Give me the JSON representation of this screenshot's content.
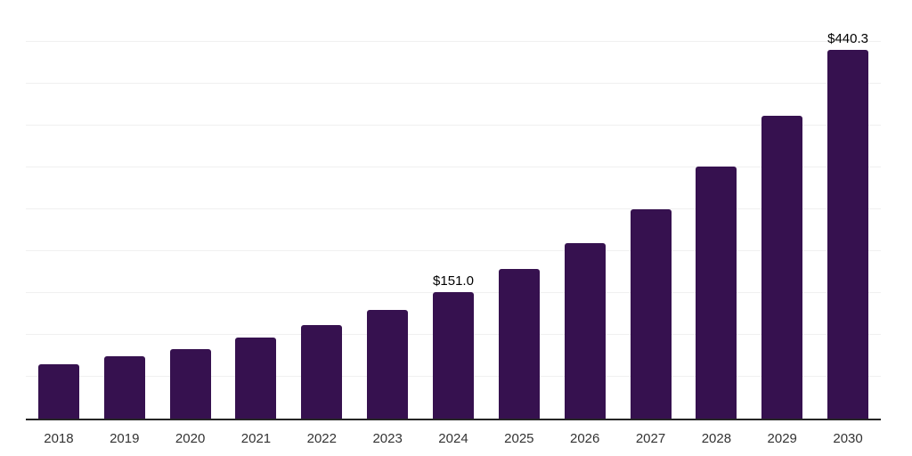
{
  "chart_data": {
    "type": "bar",
    "title": "",
    "xlabel": "",
    "ylabel": "",
    "categories": [
      "2018",
      "2019",
      "2020",
      "2021",
      "2022",
      "2023",
      "2024",
      "2025",
      "2026",
      "2027",
      "2028",
      "2029",
      "2030"
    ],
    "values": [
      65.0,
      74.5,
      82.5,
      96.5,
      112.0,
      130.0,
      151.0,
      178.5,
      210.0,
      250.0,
      301.0,
      362.0,
      440.3
    ],
    "value_labels": {
      "2024": "$151.0",
      "2030": "$440.3"
    },
    "ylim": [
      0,
      500
    ],
    "grid_step": 50,
    "grid": "horizontal-only",
    "legend_position": "none",
    "colors": {
      "bar": "#36114F",
      "axis_line": "#262626",
      "gridline": "#f0f0f0",
      "tick_label": "#333333",
      "value_label": "#000000",
      "background": "#ffffff"
    }
  }
}
